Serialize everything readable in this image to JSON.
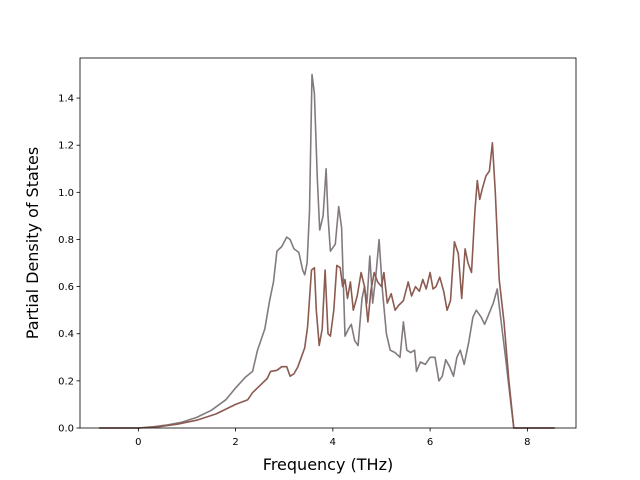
{
  "chart_data": {
    "type": "line",
    "title": "",
    "xlabel": "Frequency (THz)",
    "ylabel": "Partial Density of States",
    "xlim": [
      -1.2,
      9.0
    ],
    "ylim": [
      0.0,
      1.57
    ],
    "x_ticks": [
      0,
      2,
      4,
      6,
      8
    ],
    "x_tick_labels": [
      "0",
      "2",
      "4",
      "6",
      "8"
    ],
    "y_ticks": [
      0.0,
      0.2,
      0.4,
      0.6,
      0.8,
      1.0,
      1.2,
      1.4
    ],
    "y_tick_labels": [
      "0.0",
      "0.2",
      "0.4",
      "0.6",
      "0.8",
      "1.0",
      "1.2",
      "1.4"
    ],
    "grid": false,
    "legend": "none",
    "series": [
      {
        "color": "#837a80",
        "points": [
          [
            -0.8,
            0.0
          ],
          [
            0.0,
            0.0
          ],
          [
            0.3,
            0.005
          ],
          [
            0.6,
            0.013
          ],
          [
            0.9,
            0.025
          ],
          [
            1.2,
            0.045
          ],
          [
            1.5,
            0.075
          ],
          [
            1.8,
            0.12
          ],
          [
            2.0,
            0.17
          ],
          [
            2.2,
            0.215
          ],
          [
            2.35,
            0.24
          ],
          [
            2.45,
            0.33
          ],
          [
            2.6,
            0.42
          ],
          [
            2.7,
            0.54
          ],
          [
            2.78,
            0.62
          ],
          [
            2.85,
            0.75
          ],
          [
            2.95,
            0.77
          ],
          [
            3.05,
            0.81
          ],
          [
            3.12,
            0.8
          ],
          [
            3.2,
            0.76
          ],
          [
            3.3,
            0.745
          ],
          [
            3.38,
            0.67
          ],
          [
            3.42,
            0.65
          ],
          [
            3.47,
            0.7
          ],
          [
            3.52,
            0.92
          ],
          [
            3.57,
            1.5
          ],
          [
            3.62,
            1.42
          ],
          [
            3.68,
            1.06
          ],
          [
            3.73,
            0.84
          ],
          [
            3.8,
            0.9
          ],
          [
            3.86,
            1.1
          ],
          [
            3.9,
            0.9
          ],
          [
            3.95,
            0.75
          ],
          [
            4.05,
            0.78
          ],
          [
            4.12,
            0.94
          ],
          [
            4.18,
            0.85
          ],
          [
            4.25,
            0.39
          ],
          [
            4.32,
            0.42
          ],
          [
            4.38,
            0.44
          ],
          [
            4.45,
            0.37
          ],
          [
            4.52,
            0.35
          ],
          [
            4.6,
            0.55
          ],
          [
            4.65,
            0.6
          ],
          [
            4.7,
            0.53
          ],
          [
            4.76,
            0.73
          ],
          [
            4.82,
            0.53
          ],
          [
            4.88,
            0.64
          ],
          [
            4.95,
            0.8
          ],
          [
            5.02,
            0.58
          ],
          [
            5.1,
            0.4
          ],
          [
            5.18,
            0.33
          ],
          [
            5.28,
            0.32
          ],
          [
            5.38,
            0.3
          ],
          [
            5.45,
            0.45
          ],
          [
            5.52,
            0.33
          ],
          [
            5.6,
            0.32
          ],
          [
            5.68,
            0.33
          ],
          [
            5.72,
            0.24
          ],
          [
            5.8,
            0.28
          ],
          [
            5.9,
            0.27
          ],
          [
            6.0,
            0.3
          ],
          [
            6.1,
            0.3
          ],
          [
            6.18,
            0.2
          ],
          [
            6.25,
            0.22
          ],
          [
            6.32,
            0.29
          ],
          [
            6.4,
            0.26
          ],
          [
            6.48,
            0.22
          ],
          [
            6.55,
            0.3
          ],
          [
            6.62,
            0.33
          ],
          [
            6.7,
            0.27
          ],
          [
            6.8,
            0.37
          ],
          [
            6.88,
            0.47
          ],
          [
            6.95,
            0.5
          ],
          [
            7.05,
            0.47
          ],
          [
            7.12,
            0.44
          ],
          [
            7.2,
            0.48
          ],
          [
            7.3,
            0.53
          ],
          [
            7.38,
            0.59
          ],
          [
            7.45,
            0.47
          ],
          [
            7.55,
            0.3
          ],
          [
            7.65,
            0.12
          ],
          [
            7.72,
            0.0
          ],
          [
            8.55,
            0.0
          ]
        ]
      },
      {
        "color": "#8b5a50",
        "points": [
          [
            -0.8,
            0.0
          ],
          [
            0.0,
            0.0
          ],
          [
            0.4,
            0.005
          ],
          [
            0.8,
            0.016
          ],
          [
            1.2,
            0.033
          ],
          [
            1.6,
            0.06
          ],
          [
            2.0,
            0.1
          ],
          [
            2.25,
            0.12
          ],
          [
            2.35,
            0.15
          ],
          [
            2.5,
            0.18
          ],
          [
            2.65,
            0.21
          ],
          [
            2.72,
            0.24
          ],
          [
            2.85,
            0.245
          ],
          [
            2.95,
            0.26
          ],
          [
            3.05,
            0.26
          ],
          [
            3.12,
            0.22
          ],
          [
            3.2,
            0.23
          ],
          [
            3.28,
            0.26
          ],
          [
            3.35,
            0.3
          ],
          [
            3.42,
            0.34
          ],
          [
            3.48,
            0.43
          ],
          [
            3.56,
            0.67
          ],
          [
            3.62,
            0.68
          ],
          [
            3.66,
            0.5
          ],
          [
            3.72,
            0.35
          ],
          [
            3.78,
            0.42
          ],
          [
            3.84,
            0.67
          ],
          [
            3.9,
            0.4
          ],
          [
            3.95,
            0.39
          ],
          [
            4.02,
            0.5
          ],
          [
            4.08,
            0.69
          ],
          [
            4.15,
            0.68
          ],
          [
            4.2,
            0.6
          ],
          [
            4.25,
            0.63
          ],
          [
            4.3,
            0.55
          ],
          [
            4.36,
            0.62
          ],
          [
            4.42,
            0.5
          ],
          [
            4.5,
            0.56
          ],
          [
            4.58,
            0.66
          ],
          [
            4.65,
            0.6
          ],
          [
            4.72,
            0.45
          ],
          [
            4.78,
            0.58
          ],
          [
            4.85,
            0.66
          ],
          [
            4.92,
            0.62
          ],
          [
            5.0,
            0.6
          ],
          [
            5.05,
            0.66
          ],
          [
            5.12,
            0.53
          ],
          [
            5.2,
            0.57
          ],
          [
            5.28,
            0.5
          ],
          [
            5.35,
            0.52
          ],
          [
            5.45,
            0.54
          ],
          [
            5.55,
            0.62
          ],
          [
            5.62,
            0.56
          ],
          [
            5.7,
            0.6
          ],
          [
            5.78,
            0.58
          ],
          [
            5.85,
            0.63
          ],
          [
            5.92,
            0.59
          ],
          [
            6.0,
            0.66
          ],
          [
            6.06,
            0.59
          ],
          [
            6.12,
            0.6
          ],
          [
            6.2,
            0.64
          ],
          [
            6.28,
            0.58
          ],
          [
            6.35,
            0.5
          ],
          [
            6.42,
            0.54
          ],
          [
            6.5,
            0.79
          ],
          [
            6.58,
            0.74
          ],
          [
            6.65,
            0.55
          ],
          [
            6.72,
            0.76
          ],
          [
            6.78,
            0.7
          ],
          [
            6.85,
            0.66
          ],
          [
            6.92,
            0.92
          ],
          [
            6.97,
            1.05
          ],
          [
            7.02,
            0.97
          ],
          [
            7.08,
            1.02
          ],
          [
            7.15,
            1.07
          ],
          [
            7.22,
            1.09
          ],
          [
            7.28,
            1.21
          ],
          [
            7.34,
            1.0
          ],
          [
            7.42,
            0.63
          ],
          [
            7.52,
            0.45
          ],
          [
            7.62,
            0.2
          ],
          [
            7.72,
            0.0
          ],
          [
            8.55,
            0.0
          ]
        ]
      }
    ]
  }
}
